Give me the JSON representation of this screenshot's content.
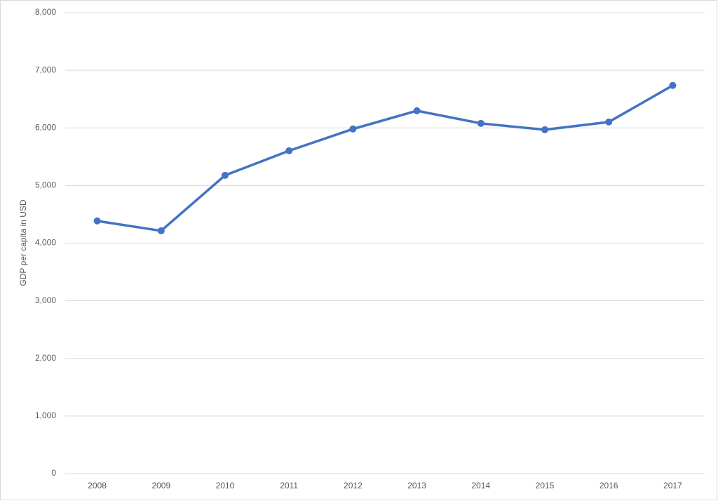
{
  "chart_data": {
    "type": "line",
    "y_label": "GDP per capita in USD",
    "categories": [
      "2008",
      "2009",
      "2010",
      "2011",
      "2012",
      "2013",
      "2014",
      "2015",
      "2016",
      "2017"
    ],
    "series": [
      {
        "name": "GDP per capita",
        "color": "#4472c4",
        "values": [
          4385,
          4214,
          5177,
          5603,
          5981,
          6297,
          6078,
          5968,
          6102,
          6736
        ]
      }
    ],
    "ylim": [
      0,
      8000
    ],
    "yticks": [
      0,
      {
        "value": 1000,
        "label": "1,000"
      },
      {
        "value": 2000,
        "label": "2,000"
      },
      {
        "value": 3000,
        "label": "3,000"
      },
      {
        "value": 4000,
        "label": "4,000"
      },
      {
        "value": 5000,
        "label": "5,000"
      },
      {
        "value": 6000,
        "label": "6,000"
      },
      {
        "value": 7000,
        "label": "7,000"
      },
      {
        "value": 8000,
        "label": "8,000"
      }
    ],
    "grid": true
  }
}
